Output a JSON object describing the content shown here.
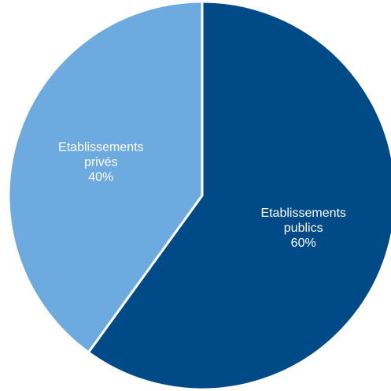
{
  "chart_data": {
    "type": "pie",
    "title": "",
    "start_angle": "12 o'clock",
    "direction": "clockwise",
    "slices": [
      {
        "name": "Etablissements publics",
        "value": 60,
        "color": "#004A87",
        "label_lines": [
          "Etablissements",
          "publics",
          "60%"
        ]
      },
      {
        "name": "Etablissements privés",
        "value": 40,
        "color": "#6CAADF",
        "label_lines": [
          "Etablissements",
          "privés",
          "40%"
        ]
      }
    ],
    "separator_color": "#ffffff",
    "legend": "none"
  }
}
